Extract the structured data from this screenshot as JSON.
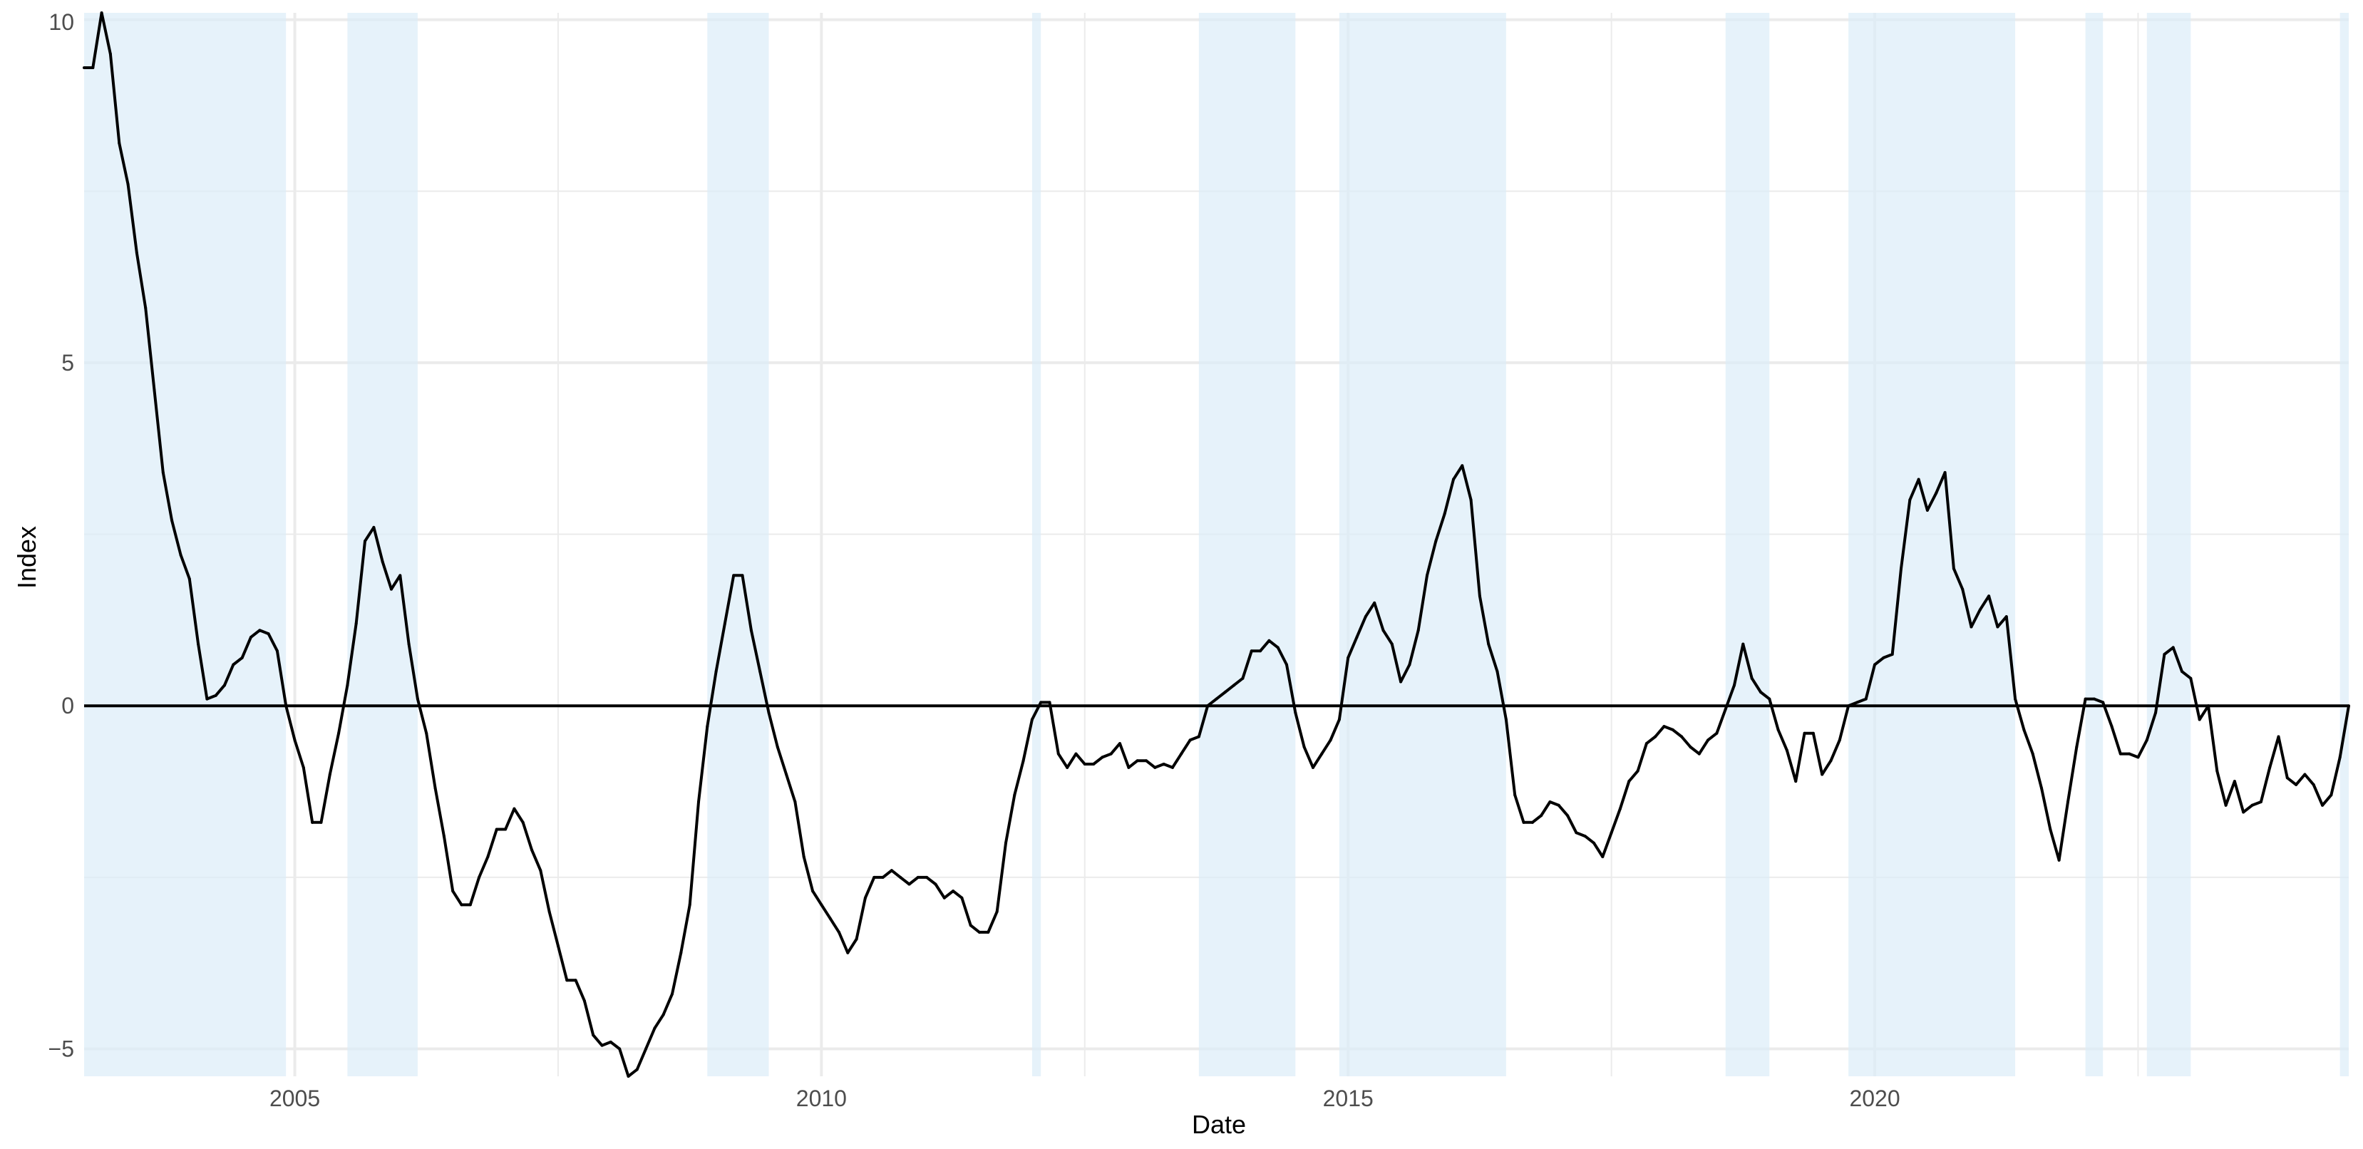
{
  "chart_data": {
    "type": "line",
    "title": "",
    "xlabel": "Date",
    "ylabel": "Index",
    "xlim": [
      "2003-01-01",
      "2024-07-01"
    ],
    "ylim": [
      -5.4,
      10.1
    ],
    "x_ticks": [
      2005,
      2010,
      2015,
      2020
    ],
    "y_ticks": [
      -5,
      0,
      5,
      10
    ],
    "y_tick_labels": [
      "−5",
      "0",
      "5",
      "10"
    ],
    "grid": true,
    "reference_line": 0,
    "colors": {
      "line": "#000000",
      "shade": "#dbedf8",
      "grid": "#ebebeb"
    },
    "shaded_periods": [
      [
        "2003-01-01",
        "2004-12-01"
      ],
      [
        "2005-07-01",
        "2006-03-01"
      ],
      [
        "2008-12-01",
        "2009-07-01"
      ],
      [
        "2012-01-01",
        "2012-02-01"
      ],
      [
        "2013-08-01",
        "2014-07-01"
      ],
      [
        "2014-12-01",
        "2016-07-01"
      ],
      [
        "2018-08-01",
        "2019-01-01"
      ],
      [
        "2019-10-01",
        "2021-05-01"
      ],
      [
        "2022-01-01",
        "2022-03-01"
      ],
      [
        "2022-08-01",
        "2023-01-01"
      ],
      [
        "2024-06-01",
        "2024-07-01"
      ]
    ],
    "series": [
      {
        "points": [
          [
            "2003-01",
            9.3
          ],
          [
            "2003-02",
            9.3
          ],
          [
            "2003-03",
            10.1
          ],
          [
            "2003-04",
            9.5
          ],
          [
            "2003-05",
            8.2
          ],
          [
            "2003-06",
            7.6
          ],
          [
            "2003-07",
            6.6
          ],
          [
            "2003-08",
            5.8
          ],
          [
            "2003-09",
            4.6
          ],
          [
            "2003-10",
            3.4
          ],
          [
            "2003-11",
            2.7
          ],
          [
            "2003-12",
            2.2
          ],
          [
            "2004-01",
            1.85
          ],
          [
            "2004-02",
            0.9
          ],
          [
            "2004-03",
            0.1
          ],
          [
            "2004-04",
            0.15
          ],
          [
            "2004-05",
            0.3
          ],
          [
            "2004-06",
            0.6
          ],
          [
            "2004-07",
            0.7
          ],
          [
            "2004-08",
            1.0
          ],
          [
            "2004-09",
            1.1
          ],
          [
            "2004-10",
            1.05
          ],
          [
            "2004-11",
            0.8
          ],
          [
            "2004-12",
            0.0
          ],
          [
            "2005-01",
            -0.5
          ],
          [
            "2005-02",
            -0.9
          ],
          [
            "2005-03",
            -1.7
          ],
          [
            "2005-04",
            -1.7
          ],
          [
            "2005-05",
            -1.0
          ],
          [
            "2005-06",
            -0.4
          ],
          [
            "2005-07",
            0.3
          ],
          [
            "2005-08",
            1.2
          ],
          [
            "2005-09",
            2.4
          ],
          [
            "2005-10",
            2.6
          ],
          [
            "2005-11",
            2.1
          ],
          [
            "2005-12",
            1.7
          ],
          [
            "2006-01",
            1.9
          ],
          [
            "2006-02",
            0.9
          ],
          [
            "2006-03",
            0.1
          ],
          [
            "2006-04",
            -0.4
          ],
          [
            "2006-05",
            -1.2
          ],
          [
            "2006-06",
            -1.9
          ],
          [
            "2006-07",
            -2.7
          ],
          [
            "2006-08",
            -2.9
          ],
          [
            "2006-09",
            -2.9
          ],
          [
            "2006-10",
            -2.5
          ],
          [
            "2006-11",
            -2.2
          ],
          [
            "2006-12",
            -1.8
          ],
          [
            "2007-01",
            -1.8
          ],
          [
            "2007-02",
            -1.5
          ],
          [
            "2007-03",
            -1.7
          ],
          [
            "2007-04",
            -2.1
          ],
          [
            "2007-05",
            -2.4
          ],
          [
            "2007-06",
            -3.0
          ],
          [
            "2007-07",
            -3.5
          ],
          [
            "2007-08",
            -4.0
          ],
          [
            "2007-09",
            -4.0
          ],
          [
            "2007-10",
            -4.3
          ],
          [
            "2007-11",
            -4.8
          ],
          [
            "2007-12",
            -4.95
          ],
          [
            "2008-01",
            -4.9
          ],
          [
            "2008-02",
            -5.0
          ],
          [
            "2008-03",
            -5.4
          ],
          [
            "2008-04",
            -5.3
          ],
          [
            "2008-05",
            -5.0
          ],
          [
            "2008-06",
            -4.7
          ],
          [
            "2008-07",
            -4.5
          ],
          [
            "2008-08",
            -4.2
          ],
          [
            "2008-09",
            -3.6
          ],
          [
            "2008-10",
            -2.9
          ],
          [
            "2008-11",
            -1.4
          ],
          [
            "2008-12",
            -0.3
          ],
          [
            "2009-01",
            0.5
          ],
          [
            "2009-02",
            1.2
          ],
          [
            "2009-03",
            1.9
          ],
          [
            "2009-04",
            1.9
          ],
          [
            "2009-05",
            1.1
          ],
          [
            "2009-06",
            0.5
          ],
          [
            "2009-07",
            -0.1
          ],
          [
            "2009-08",
            -0.6
          ],
          [
            "2009-09",
            -1.0
          ],
          [
            "2009-10",
            -1.4
          ],
          [
            "2009-11",
            -2.2
          ],
          [
            "2009-12",
            -2.7
          ],
          [
            "2010-01",
            -2.9
          ],
          [
            "2010-02",
            -3.1
          ],
          [
            "2010-03",
            -3.3
          ],
          [
            "2010-04",
            -3.6
          ],
          [
            "2010-05",
            -3.4
          ],
          [
            "2010-06",
            -2.8
          ],
          [
            "2010-07",
            -2.5
          ],
          [
            "2010-08",
            -2.5
          ],
          [
            "2010-09",
            -2.4
          ],
          [
            "2010-10",
            -2.5
          ],
          [
            "2010-11",
            -2.6
          ],
          [
            "2010-12",
            -2.5
          ],
          [
            "2011-01",
            -2.5
          ],
          [
            "2011-02",
            -2.6
          ],
          [
            "2011-03",
            -2.8
          ],
          [
            "2011-04",
            -2.7
          ],
          [
            "2011-05",
            -2.8
          ],
          [
            "2011-06",
            -3.2
          ],
          [
            "2011-07",
            -3.3
          ],
          [
            "2011-08",
            -3.3
          ],
          [
            "2011-09",
            -3.0
          ],
          [
            "2011-10",
            -2.0
          ],
          [
            "2011-11",
            -1.3
          ],
          [
            "2011-12",
            -0.8
          ],
          [
            "2012-01",
            -0.2
          ],
          [
            "2012-02",
            0.05
          ],
          [
            "2012-03",
            0.05
          ],
          [
            "2012-04",
            -0.7
          ],
          [
            "2012-05",
            -0.9
          ],
          [
            "2012-06",
            -0.7
          ],
          [
            "2012-07",
            -0.85
          ],
          [
            "2012-08",
            -0.85
          ],
          [
            "2012-09",
            -0.75
          ],
          [
            "2012-10",
            -0.7
          ],
          [
            "2012-11",
            -0.55
          ],
          [
            "2012-12",
            -0.9
          ],
          [
            "2013-01",
            -0.8
          ],
          [
            "2013-02",
            -0.8
          ],
          [
            "2013-03",
            -0.9
          ],
          [
            "2013-04",
            -0.85
          ],
          [
            "2013-05",
            -0.9
          ],
          [
            "2013-06",
            -0.7
          ],
          [
            "2013-07",
            -0.5
          ],
          [
            "2013-08",
            -0.45
          ],
          [
            "2013-09",
            0.0
          ],
          [
            "2013-10",
            0.1
          ],
          [
            "2013-11",
            0.2
          ],
          [
            "2013-12",
            0.3
          ],
          [
            "2014-01",
            0.4
          ],
          [
            "2014-02",
            0.8
          ],
          [
            "2014-03",
            0.8
          ],
          [
            "2014-04",
            0.95
          ],
          [
            "2014-05",
            0.85
          ],
          [
            "2014-06",
            0.6
          ],
          [
            "2014-07",
            -0.1
          ],
          [
            "2014-08",
            -0.6
          ],
          [
            "2014-09",
            -0.9
          ],
          [
            "2014-10",
            -0.7
          ],
          [
            "2014-11",
            -0.5
          ],
          [
            "2014-12",
            -0.2
          ],
          [
            "2015-01",
            0.7
          ],
          [
            "2015-02",
            1.0
          ],
          [
            "2015-03",
            1.3
          ],
          [
            "2015-04",
            1.5
          ],
          [
            "2015-05",
            1.1
          ],
          [
            "2015-06",
            0.9
          ],
          [
            "2015-07",
            0.35
          ],
          [
            "2015-08",
            0.6
          ],
          [
            "2015-09",
            1.1
          ],
          [
            "2015-10",
            1.9
          ],
          [
            "2015-11",
            2.4
          ],
          [
            "2015-12",
            2.8
          ],
          [
            "2016-01",
            3.3
          ],
          [
            "2016-02",
            3.5
          ],
          [
            "2016-03",
            3.0
          ],
          [
            "2016-04",
            1.6
          ],
          [
            "2016-05",
            0.9
          ],
          [
            "2016-06",
            0.5
          ],
          [
            "2016-07",
            -0.2
          ],
          [
            "2016-08",
            -1.3
          ],
          [
            "2016-09",
            -1.7
          ],
          [
            "2016-10",
            -1.7
          ],
          [
            "2016-11",
            -1.6
          ],
          [
            "2016-12",
            -1.4
          ],
          [
            "2017-01",
            -1.45
          ],
          [
            "2017-02",
            -1.6
          ],
          [
            "2017-03",
            -1.85
          ],
          [
            "2017-04",
            -1.9
          ],
          [
            "2017-05",
            -2.0
          ],
          [
            "2017-06",
            -2.2
          ],
          [
            "2017-07",
            -1.85
          ],
          [
            "2017-08",
            -1.5
          ],
          [
            "2017-09",
            -1.1
          ],
          [
            "2017-10",
            -0.95
          ],
          [
            "2017-11",
            -0.55
          ],
          [
            "2017-12",
            -0.45
          ],
          [
            "2018-01",
            -0.3
          ],
          [
            "2018-02",
            -0.35
          ],
          [
            "2018-03",
            -0.45
          ],
          [
            "2018-04",
            -0.6
          ],
          [
            "2018-05",
            -0.7
          ],
          [
            "2018-06",
            -0.5
          ],
          [
            "2018-07",
            -0.4
          ],
          [
            "2018-08",
            -0.05
          ],
          [
            "2018-09",
            0.3
          ],
          [
            "2018-10",
            0.9
          ],
          [
            "2018-11",
            0.4
          ],
          [
            "2018-12",
            0.2
          ],
          [
            "2019-01",
            0.1
          ],
          [
            "2019-02",
            -0.35
          ],
          [
            "2019-03",
            -0.65
          ],
          [
            "2019-04",
            -1.1
          ],
          [
            "2019-05",
            -0.4
          ],
          [
            "2019-06",
            -0.4
          ],
          [
            "2019-07",
            -1.0
          ],
          [
            "2019-08",
            -0.8
          ],
          [
            "2019-09",
            -0.5
          ],
          [
            "2019-10",
            0.0
          ],
          [
            "2019-11",
            0.05
          ],
          [
            "2019-12",
            0.1
          ],
          [
            "2020-01",
            0.6
          ],
          [
            "2020-02",
            0.7
          ],
          [
            "2020-03",
            0.75
          ],
          [
            "2020-04",
            2.0
          ],
          [
            "2020-05",
            3.0
          ],
          [
            "2020-06",
            3.3
          ],
          [
            "2020-07",
            2.85
          ],
          [
            "2020-08",
            3.1
          ],
          [
            "2020-09",
            3.4
          ],
          [
            "2020-10",
            2.0
          ],
          [
            "2020-11",
            1.7
          ],
          [
            "2020-12",
            1.15
          ],
          [
            "2021-01",
            1.4
          ],
          [
            "2021-02",
            1.6
          ],
          [
            "2021-03",
            1.15
          ],
          [
            "2021-04",
            1.3
          ],
          [
            "2021-05",
            0.1
          ],
          [
            "2021-06",
            -0.35
          ],
          [
            "2021-07",
            -0.7
          ],
          [
            "2021-08",
            -1.2
          ],
          [
            "2021-09",
            -1.8
          ],
          [
            "2021-10",
            -2.25
          ],
          [
            "2021-11",
            -1.4
          ],
          [
            "2021-12",
            -0.6
          ],
          [
            "2022-01",
            0.1
          ],
          [
            "2022-02",
            0.1
          ],
          [
            "2022-03",
            0.05
          ],
          [
            "2022-04",
            -0.3
          ],
          [
            "2022-05",
            -0.7
          ],
          [
            "2022-06",
            -0.7
          ],
          [
            "2022-07",
            -0.75
          ],
          [
            "2022-08",
            -0.5
          ],
          [
            "2022-09",
            -0.1
          ],
          [
            "2022-10",
            0.75
          ],
          [
            "2022-11",
            0.85
          ],
          [
            "2022-12",
            0.5
          ],
          [
            "2023-01",
            0.4
          ],
          [
            "2023-02",
            -0.2
          ],
          [
            "2023-03",
            0.0
          ],
          [
            "2023-04",
            -0.95
          ],
          [
            "2023-05",
            -1.45
          ],
          [
            "2023-06",
            -1.1
          ],
          [
            "2023-07",
            -1.55
          ],
          [
            "2023-08",
            -1.45
          ],
          [
            "2023-09",
            -1.4
          ],
          [
            "2023-10",
            -0.9
          ],
          [
            "2023-11",
            -0.45
          ],
          [
            "2023-12",
            -1.05
          ],
          [
            "2024-01",
            -1.15
          ],
          [
            "2024-02",
            -1.0
          ],
          [
            "2024-03",
            -1.15
          ],
          [
            "2024-04",
            -1.45
          ],
          [
            "2024-05",
            -1.3
          ],
          [
            "2024-06",
            -0.75
          ],
          [
            "2024-07",
            0.0
          ]
        ]
      }
    ]
  }
}
